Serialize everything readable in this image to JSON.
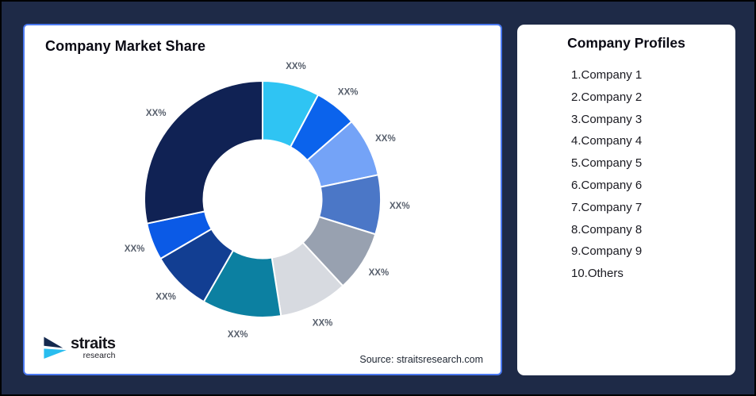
{
  "canvas": {
    "background_color": "#1E2A47",
    "frame_border_color": "#000000"
  },
  "chart_card": {
    "title": "Company Market Share",
    "source": "Source: straitsresearch.com",
    "border_color": "#4B79F0"
  },
  "logo": {
    "name": "straits",
    "subtitle": "research",
    "icon_colors": {
      "top_arrow": "#14294E",
      "bottom_arrow": "#29BDEF"
    }
  },
  "profiles": {
    "title": "Company Profiles",
    "items": [
      "1.Company 1",
      "2.Company 2",
      "3.Company 3",
      "4.Company 4",
      "5.Company 5",
      "6.Company 6",
      "7.Company 7",
      "8.Company 8",
      "9.Company 9",
      "10.Others"
    ]
  },
  "chart_data": {
    "type": "pie",
    "subtype": "donut",
    "title": "Company Market Share",
    "legend": "none",
    "data_labels": "masked as XX%",
    "values_note": "numeric values not shown on screen; estimated from arc angles, clockwise from 12 o'clock",
    "inner_radius_ratio": 0.5,
    "slices": [
      {
        "label": "XX%",
        "value": 7.8,
        "color": "#2FC4F3"
      },
      {
        "label": "XX%",
        "value": 5.8,
        "color": "#0B63EC"
      },
      {
        "label": "XX%",
        "value": 8.1,
        "color": "#74A3F7"
      },
      {
        "label": "XX%",
        "value": 8.1,
        "color": "#4B77C7"
      },
      {
        "label": "XX%",
        "value": 8.3,
        "color": "#98A1B0"
      },
      {
        "label": "XX%",
        "value": 9.4,
        "color": "#D7DAE0"
      },
      {
        "label": "XX%",
        "value": 10.8,
        "color": "#0C80A1"
      },
      {
        "label": "XX%",
        "value": 8.3,
        "color": "#123E92"
      },
      {
        "label": "XX%",
        "value": 5.1,
        "color": "#0B5AE6"
      },
      {
        "label": "XX%",
        "value": 28.3,
        "color": "#102254"
      }
    ]
  }
}
